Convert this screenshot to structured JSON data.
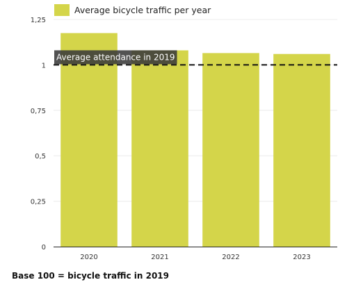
{
  "chart_data": {
    "type": "bar",
    "categories": [
      "2020",
      "2021",
      "2022",
      "2023"
    ],
    "series": [
      {
        "name": "Average bicycle traffic per year",
        "values": [
          1.175,
          1.08,
          1.065,
          1.06
        ]
      }
    ],
    "ylim": [
      0,
      1.25
    ],
    "yticks": [
      "0",
      "0,25",
      "0,5",
      "0,75",
      "1",
      "1,25"
    ],
    "ytick_values": [
      0,
      0.25,
      0.5,
      0.75,
      1,
      1.25
    ],
    "reference_line": {
      "value": 1,
      "label": "Average attendance in 2019",
      "style": "dashed"
    },
    "legend_position": "top",
    "grid": true,
    "colors": {
      "bar": "#d4d54a",
      "grid": "#ececec",
      "reference_line": "#111111",
      "label_bg": "#3a3a3a",
      "label_text": "#ffffff"
    }
  },
  "footnote": "Base 100 = bicycle traffic in 2019"
}
